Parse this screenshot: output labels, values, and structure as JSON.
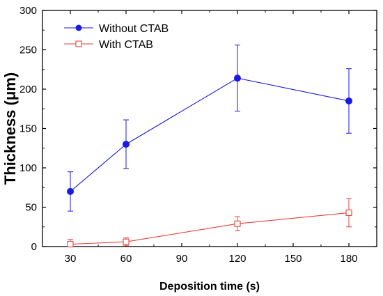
{
  "chart_data": {
    "type": "line",
    "xlabel": "Deposition time (s)",
    "ylabel": "Thickness (μm)",
    "x_ticks": [
      30,
      60,
      90,
      120,
      150,
      180
    ],
    "y_ticks": [
      0,
      50,
      100,
      150,
      200,
      250,
      300
    ],
    "xlim": [
      15,
      195
    ],
    "ylim": [
      0,
      300
    ],
    "grid": false,
    "legend_position": "top-left",
    "series": [
      {
        "name": "Without CTAB",
        "color": "#1a1ae6",
        "marker": "filled-circle",
        "x": [
          30,
          60,
          120,
          180
        ],
        "values": [
          70,
          130,
          214,
          185
        ],
        "errors": [
          25,
          31,
          42,
          41
        ]
      },
      {
        "name": "With CTAB",
        "color": "#e8413a",
        "marker": "open-square",
        "x": [
          30,
          60,
          120,
          180
        ],
        "values": [
          3,
          6,
          29,
          43
        ],
        "errors": [
          6,
          5,
          9,
          18
        ]
      }
    ]
  }
}
